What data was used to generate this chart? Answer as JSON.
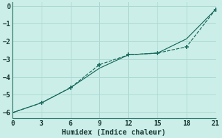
{
  "xlabel": "Humidex (Indice chaleur)",
  "background_color": "#cceee8",
  "grid_color": "#aad8d2",
  "line_color": "#1a6b5e",
  "xlim": [
    0,
    21
  ],
  "ylim": [
    -6.3,
    0.2
  ],
  "xticks": [
    0,
    3,
    6,
    9,
    12,
    15,
    18,
    21
  ],
  "yticks": [
    0,
    -1,
    -2,
    -3,
    -4,
    -5,
    -6
  ],
  "line1_x": [
    0,
    3,
    6,
    9,
    12,
    15,
    18,
    21
  ],
  "line1_y": [
    -6.0,
    -5.45,
    -4.6,
    -3.5,
    -2.75,
    -2.65,
    -1.85,
    -0.2
  ],
  "line2_x": [
    0,
    3,
    6,
    9,
    12,
    15,
    18,
    21
  ],
  "line2_y": [
    -6.0,
    -5.45,
    -4.6,
    -3.3,
    -2.75,
    -2.65,
    -2.3,
    -0.2
  ]
}
